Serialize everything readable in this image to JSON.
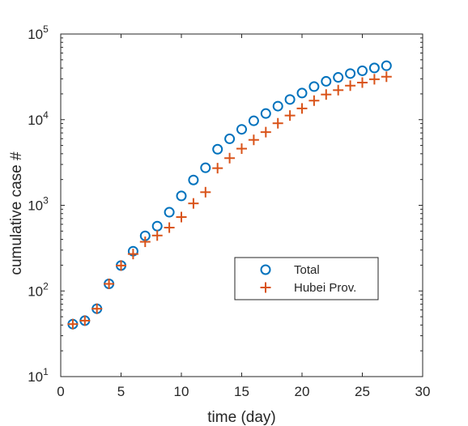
{
  "chart_data": {
    "type": "scatter",
    "xlabel": "time (day)",
    "ylabel": "cumulative case #",
    "xlim": [
      0,
      30
    ],
    "ylim": [
      10,
      100000
    ],
    "yscale": "log",
    "grid": false,
    "legend_position": "lower-right (inside)",
    "xticks": [
      "0",
      "5",
      "10",
      "15",
      "20",
      "25",
      "30"
    ],
    "yticks": [
      {
        "base": "10",
        "exp": "1"
      },
      {
        "base": "10",
        "exp": "2"
      },
      {
        "base": "10",
        "exp": "3"
      },
      {
        "base": "10",
        "exp": "4"
      },
      {
        "base": "10",
        "exp": "5"
      }
    ],
    "x": [
      1,
      2,
      3,
      4,
      5,
      6,
      7,
      8,
      9,
      10,
      11,
      12,
      13,
      14,
      15,
      16,
      17,
      18,
      19,
      20,
      21,
      22,
      23,
      24,
      25,
      26,
      27
    ],
    "series": [
      {
        "name": "Total",
        "marker": "circle",
        "color": "#0072BD",
        "values": [
          41,
          45,
          62,
          121,
          198,
          291,
          440,
          571,
          830,
          1287,
          1975,
          2744,
          4515,
          5974,
          7711,
          9692,
          11791,
          14380,
          17205,
          20438,
          24324,
          28018,
          31161,
          34546,
          37198,
          40171,
          42638
        ]
      },
      {
        "name": "Hubei Prov.",
        "marker": "plus",
        "color": "#D95319",
        "values": [
          41,
          45,
          62,
          121,
          198,
          270,
          375,
          444,
          549,
          729,
          1052,
          1423,
          2714,
          3554,
          4586,
          5806,
          7153,
          9074,
          11177,
          13522,
          16678,
          19665,
          22112,
          24953,
          27100,
          29631,
          31728
        ]
      }
    ]
  }
}
